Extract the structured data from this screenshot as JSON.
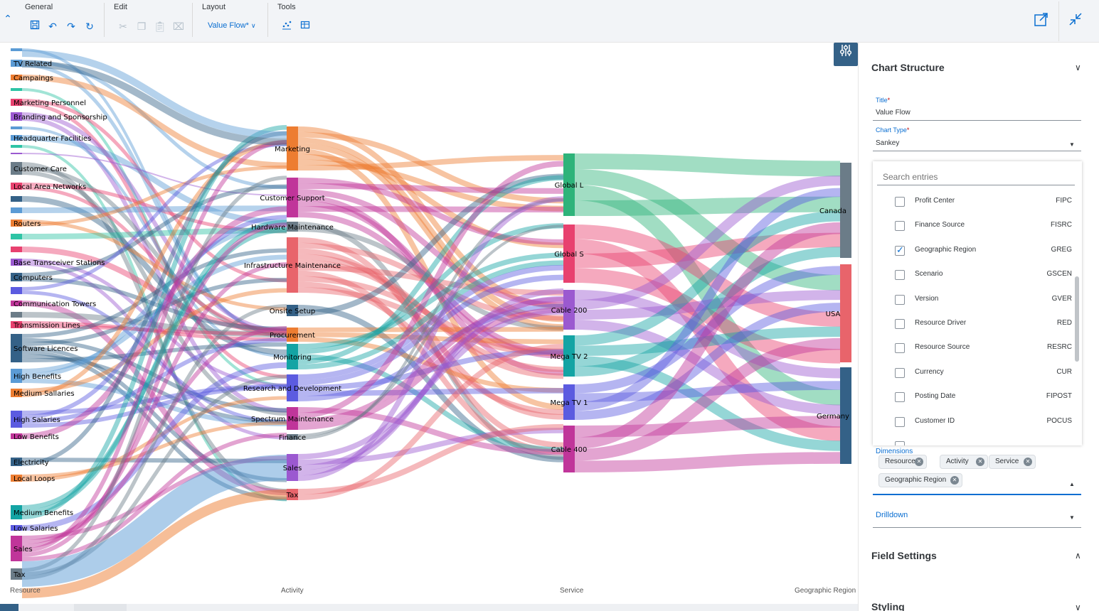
{
  "toolbar": {
    "groups": [
      {
        "title": "General"
      },
      {
        "title": "Edit"
      },
      {
        "title": "Layout"
      },
      {
        "title": "Tools"
      }
    ],
    "layout_value": "Value Flow*",
    "icons": {
      "save": "save-icon",
      "undo": "undo-icon",
      "redo": "redo-icon",
      "refresh": "refresh-icon",
      "cut": "cut-icon",
      "copy": "copy-icon",
      "paste": "paste-icon",
      "delete": "delete-icon",
      "chart_tool": "chart-tool-icon",
      "table_tool": "table-tool-icon",
      "open_new": "open-new-window-icon",
      "exit_fullscreen": "exit-fullscreen-icon"
    }
  },
  "chart": {
    "columns": [
      "Resource",
      "Activity",
      "Service",
      "Geographic Region"
    ],
    "resources": [
      {
        "label": "",
        "color": "#5b9bd5"
      },
      {
        "label": "TV Related",
        "color": "#5b9bd5"
      },
      {
        "label": "Campaings",
        "color": "#ed7d31"
      },
      {
        "label": "",
        "color": "#2ec4a5"
      },
      {
        "label": "Marketing Personnel",
        "color": "#e8416f"
      },
      {
        "label": "Branding and Sponsorship",
        "color": "#9b59d0"
      },
      {
        "label": "",
        "color": "#5b9bd5"
      },
      {
        "label": "Headquarter Facilities",
        "color": "#5b9bd5"
      },
      {
        "label": "",
        "color": "#2ec4a5"
      },
      {
        "label": "",
        "color": "#9b59d0"
      },
      {
        "label": "Customer Care",
        "color": "#6b7c88"
      },
      {
        "label": "Local Area Networks",
        "color": "#e8416f"
      },
      {
        "label": "",
        "color": "#346187"
      },
      {
        "label": "",
        "color": "#5b9bd5"
      },
      {
        "label": "Routers",
        "color": "#ed7d31"
      },
      {
        "label": "",
        "color": "#2ec4a5"
      },
      {
        "label": "",
        "color": "#e8416f"
      },
      {
        "label": "Base Transceiver Stations",
        "color": "#9b59d0"
      },
      {
        "label": "Computers",
        "color": "#346187"
      },
      {
        "label": "",
        "color": "#5b5be0"
      },
      {
        "label": "Communication Towers",
        "color": "#c0359a"
      },
      {
        "label": "",
        "color": "#6b7c88"
      },
      {
        "label": "Transmission Lines",
        "color": "#e8416f"
      },
      {
        "label": "Software Licences",
        "color": "#346187"
      },
      {
        "label": "High Benefits",
        "color": "#5b9bd5"
      },
      {
        "label": "Medium Sallaries",
        "color": "#ed7d31"
      },
      {
        "label": "High Salaries",
        "color": "#5b5be0"
      },
      {
        "label": "Low Benefits",
        "color": "#c0359a"
      },
      {
        "label": "Electricity",
        "color": "#346187"
      },
      {
        "label": "Local Loops",
        "color": "#ed7d31"
      },
      {
        "label": "Medium Benefits",
        "color": "#13a4a4"
      },
      {
        "label": "Low Salaries",
        "color": "#5b5be0"
      },
      {
        "label": "Sales",
        "color": "#c0359a"
      },
      {
        "label": "Tax",
        "color": "#6b7c88"
      }
    ],
    "activities": [
      {
        "label": "Marketing",
        "color": "#ed7d31"
      },
      {
        "label": "Customer Support",
        "color": "#c0359a"
      },
      {
        "label": "Hardware Maintenance",
        "color": "#6b7c88"
      },
      {
        "label": "Infrastructure Maintenance",
        "color": "#e8646b"
      },
      {
        "label": "Onsite Setup",
        "color": "#346187"
      },
      {
        "label": "Procurement",
        "color": "#ed7d31"
      },
      {
        "label": "Monitoring",
        "color": "#13a4a4"
      },
      {
        "label": "Research and Development",
        "color": "#5b5be0"
      },
      {
        "label": "Spectrum Maintenance",
        "color": "#c0359a"
      },
      {
        "label": "Finance",
        "color": "#6b7c88"
      },
      {
        "label": "Sales",
        "color": "#9b59d0"
      },
      {
        "label": "Tax",
        "color": "#e8646b"
      }
    ],
    "services": [
      {
        "label": "Global L",
        "color": "#2eb37a"
      },
      {
        "label": "Global S",
        "color": "#e8416f"
      },
      {
        "label": "Cable 200",
        "color": "#9b59d0"
      },
      {
        "label": "Mega TV 2",
        "color": "#13a4a4"
      },
      {
        "label": "Mega TV 1",
        "color": "#5b5be0"
      },
      {
        "label": "Cable 400",
        "color": "#c0359a"
      }
    ],
    "regions": [
      {
        "label": "Canada",
        "color": "#6b7c88"
      },
      {
        "label": "USA",
        "color": "#e8646b"
      },
      {
        "label": "Germany",
        "color": "#346187"
      }
    ],
    "settings_icon": "settings-sliders-icon"
  },
  "panel": {
    "chart_structure_title": "Chart Structure",
    "title_label": "Title",
    "title_value": "Value Flow",
    "chart_type_label": "Chart Type",
    "chart_type_value": "Sankey",
    "search_placeholder": "Search entries",
    "entries": [
      {
        "name": "Profit Center",
        "code": "FIPC",
        "checked": false
      },
      {
        "name": "Finance Source",
        "code": "FISRC",
        "checked": false
      },
      {
        "name": "Geographic Region",
        "code": "GREG",
        "checked": true
      },
      {
        "name": "Scenario",
        "code": "GSCEN",
        "checked": false
      },
      {
        "name": "Version",
        "code": "GVER",
        "checked": false
      },
      {
        "name": "Resource Driver",
        "code": "RED",
        "checked": false
      },
      {
        "name": "Resource Source",
        "code": "RESRC",
        "checked": false
      },
      {
        "name": "Currency",
        "code": "CUR",
        "checked": false
      },
      {
        "name": "Posting Date",
        "code": "FIPOST",
        "checked": false
      },
      {
        "name": "Customer ID",
        "code": "POCUS",
        "checked": false
      }
    ],
    "dimensions_label": "Dimensions",
    "dimensions": [
      "Resource",
      "Activity",
      "Service",
      "Geographic Region"
    ],
    "drilldown_label": "Drilldown",
    "field_settings_title": "Field Settings",
    "styling_title": "Styling"
  }
}
